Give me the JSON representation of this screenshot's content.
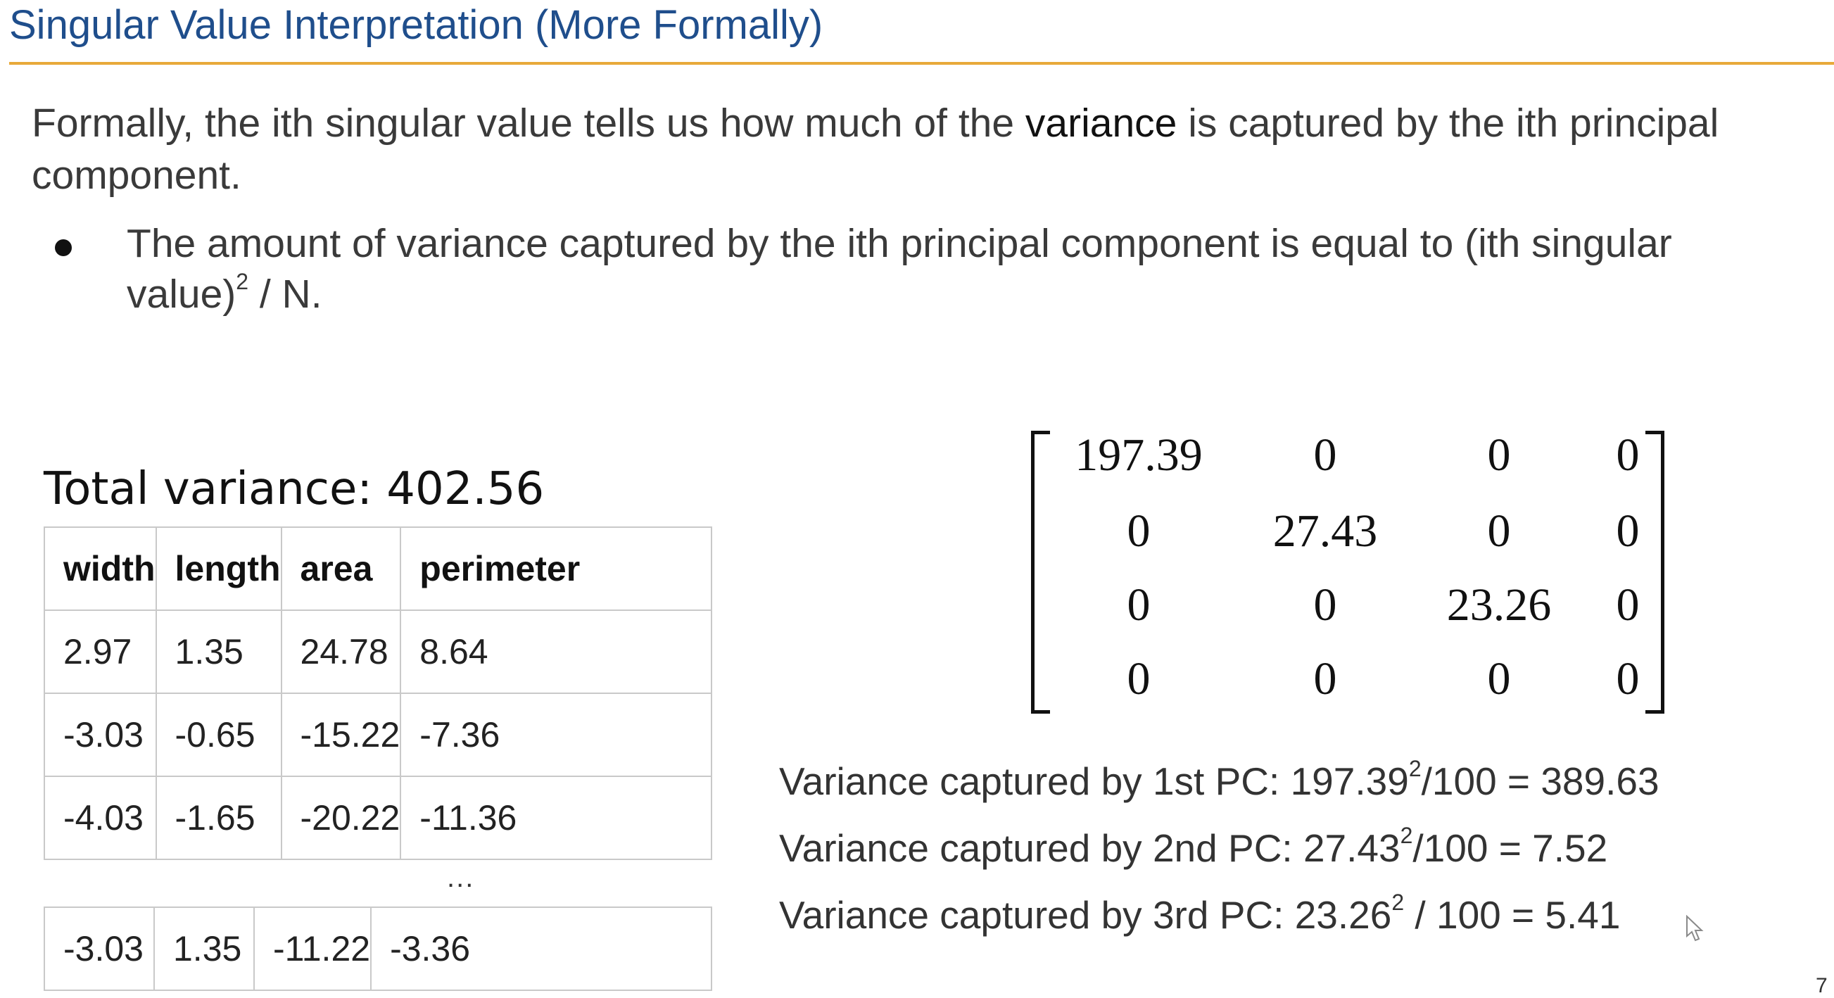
{
  "slide": {
    "title": "Singular Value Interpretation (More Formally)",
    "intro_before": "Formally, the ith singular value tells us how much of the ",
    "intro_emphasis": "variance",
    "intro_after": " is captured by the ith principal component.",
    "bullet_before": "The amount of variance captured by the ith principal component is equal to (ith singular value)",
    "bullet_sup": "2",
    "bullet_after": " / N."
  },
  "table": {
    "title": "Total variance: 402.56",
    "headers": [
      "width",
      "length",
      "area",
      "perimeter"
    ],
    "rows": [
      [
        "2.97",
        "1.35",
        "24.78",
        "8.64"
      ],
      [
        "-3.03",
        "-0.65",
        "-15.22",
        "-7.36"
      ],
      [
        "-4.03",
        "-1.65",
        "-20.22",
        "-11.36"
      ]
    ],
    "ellipsis": "...",
    "last_row": [
      "-3.03",
      "1.35",
      "-11.22",
      "-3.36"
    ]
  },
  "matrix": {
    "rows": [
      [
        "197.39",
        "0",
        "0",
        "0"
      ],
      [
        "0",
        "27.43",
        "0",
        "0"
      ],
      [
        "0",
        "0",
        "23.26",
        "0"
      ],
      [
        "0",
        "0",
        "0",
        "0"
      ]
    ]
  },
  "captured": [
    {
      "prefix": "Variance captured by 1st PC: 197.39",
      "sup": "2",
      "suffix": "/100 = 389.63"
    },
    {
      "prefix": "Variance captured by 2nd PC: 27.43",
      "sup": "2",
      "suffix": "/100 = 7.52"
    },
    {
      "prefix": "Variance captured by 3rd PC: 23.26",
      "sup": "2",
      "suffix": " / 100 = 5.41"
    }
  ],
  "page_number_partial": "7"
}
